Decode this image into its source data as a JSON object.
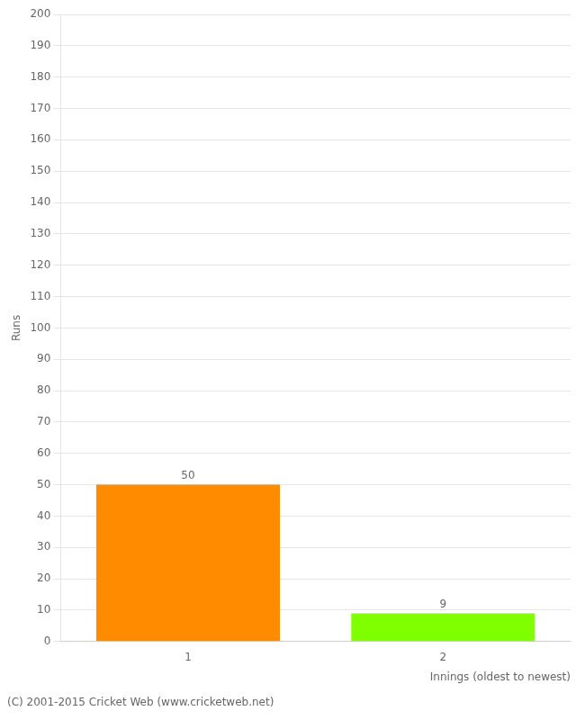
{
  "chart_data": {
    "type": "bar",
    "categories": [
      "1",
      "2"
    ],
    "values": [
      50,
      9
    ],
    "colors": [
      "#FF8C00",
      "#7FFF00"
    ],
    "ylabel": "Runs",
    "xlabel": "Innings (oldest to newest)",
    "annotations": [
      "(C) 2001-2015 Cricket Web (www.cricketweb.net)"
    ],
    "ylim": [
      0,
      200
    ],
    "yticks": [
      0,
      10,
      20,
      30,
      40,
      50,
      60,
      70,
      80,
      90,
      100,
      110,
      120,
      130,
      140,
      150,
      160,
      170,
      180,
      190,
      200
    ],
    "grid": true,
    "data_labels": true
  }
}
